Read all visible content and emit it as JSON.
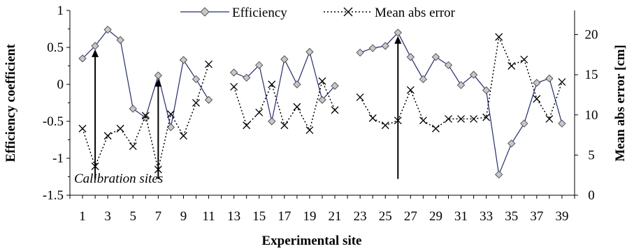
{
  "chart_data": {
    "type": "line",
    "xlabel": "Experimental site",
    "ylabel_left": "Efficiency coefficient",
    "ylabel_right": "Mean abs error [cm]",
    "x_ticks": [
      1,
      3,
      5,
      7,
      9,
      11,
      13,
      15,
      17,
      19,
      21,
      23,
      25,
      27,
      29,
      31,
      33,
      35,
      37,
      39
    ],
    "xlim": [
      0,
      40
    ],
    "ylim_left": [
      -1.5,
      1
    ],
    "y_ticks_left": [
      "1",
      "0.5",
      "0",
      "-0.5",
      "-1",
      "-1.5"
    ],
    "y_tick_values_left": [
      1,
      0.5,
      0,
      -0.5,
      -1,
      -1.5
    ],
    "ylim_right": [
      0,
      23
    ],
    "y_ticks_right": [
      "20",
      "15",
      "10",
      "5",
      "0"
    ],
    "y_tick_values_right": [
      20,
      15,
      10,
      5,
      0
    ],
    "legend_position": "top",
    "grid": false,
    "series": [
      {
        "name": "Efficiency",
        "axis": "left",
        "color": "#1f2a8c",
        "marker": "diamond",
        "line": "solid",
        "segments": [
          {
            "x": [
              1,
              2,
              3,
              4,
              5,
              6,
              7,
              8,
              9,
              10,
              11
            ],
            "y": [
              0.35,
              0.52,
              0.74,
              0.6,
              -0.33,
              -0.45,
              0.12,
              -0.58,
              0.33,
              0.07,
              -0.21
            ]
          },
          {
            "x": [
              13,
              14,
              15,
              16,
              17,
              18,
              19,
              20,
              21
            ],
            "y": [
              0.16,
              0.09,
              0.26,
              -0.5,
              0.34,
              0.0,
              0.44,
              -0.21,
              -0.02
            ]
          },
          {
            "x": [
              23,
              24,
              25,
              26,
              27,
              28,
              29,
              30,
              31,
              32,
              33,
              34,
              35,
              36,
              37,
              38,
              39
            ],
            "y": [
              0.43,
              0.49,
              0.52,
              0.7,
              0.37,
              0.07,
              0.37,
              0.26,
              -0.01,
              0.13,
              -0.08,
              -1.22,
              -0.8,
              -0.53,
              0.02,
              0.08,
              -0.53
            ]
          }
        ]
      },
      {
        "name": "Mean abs error",
        "axis": "right",
        "color": "#000000",
        "marker": "x",
        "line": "dotted",
        "segments": [
          {
            "x": [
              1,
              2,
              3,
              4,
              5,
              6,
              7,
              8,
              9,
              10,
              11
            ],
            "y": [
              8.3,
              3.6,
              7.4,
              8.3,
              6.1,
              9.9,
              3.2,
              10.1,
              7.4,
              11.5,
              16.3
            ]
          },
          {
            "x": [
              13,
              14,
              15,
              16,
              17,
              18,
              19,
              20,
              21
            ],
            "y": [
              13.5,
              8.7,
              10.3,
              13.8,
              8.7,
              11.0,
              8.1,
              14.2,
              10.6
            ]
          },
          {
            "x": [
              23,
              24,
              25,
              26,
              27,
              28,
              29,
              30,
              31,
              32,
              33,
              34,
              35,
              36,
              37,
              38,
              39
            ],
            "y": [
              12.2,
              9.6,
              8.7,
              9.3,
              13.1,
              9.3,
              8.3,
              9.5,
              9.5,
              9.5,
              9.7,
              19.7,
              16.1,
              16.9,
              12.0,
              9.5,
              14.1
            ]
          }
        ]
      }
    ],
    "annotations": {
      "text": "Calibration sites",
      "arrow_sites": [
        2,
        7,
        26
      ],
      "arrow_base": -1.28,
      "arrow_tip": [
        0.52,
        0.12,
        0.7
      ]
    }
  }
}
